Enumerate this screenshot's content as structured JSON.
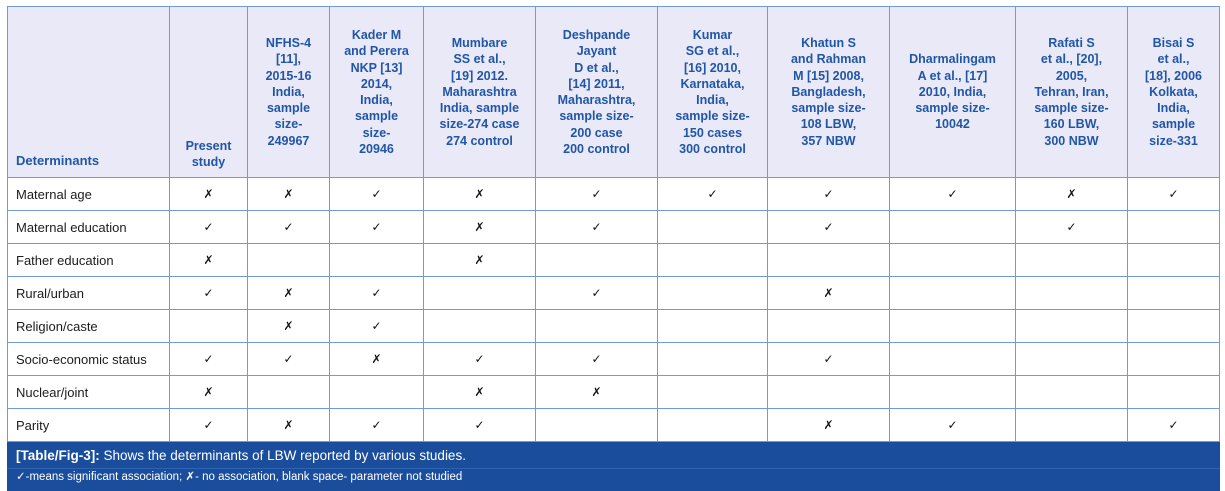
{
  "table": {
    "determinants_header": "Determinants",
    "columns": [
      "Present\nstudy",
      "NFHS-4\n[11],\n2015-16\nIndia,\nsample\nsize-\n249967",
      "Kader M\nand Perera\nNKP [13]\n2014,\nIndia,\nsample\nsize-\n20946",
      "Mumbare\nSS et al.,\n[19] 2012.\nMaharashtra\nIndia, sample\nsize-274 case\n274 control",
      "Deshpande\nJayant\nD et al.,\n[14] 2011,\nMaharashtra,\nsample size-\n200 case\n200 control",
      "Kumar\nSG et al.,\n[16] 2010,\nKarnataka,\nIndia,\nsample size-\n150 cases\n300 control",
      "Khatun S\nand Rahman\nM [15] 2008,\nBangladesh,\nsample size-\n108 LBW,\n357 NBW",
      "Dharmalingam\nA et al., [17]\n2010, India,\nsample size-\n10042",
      "Rafati S\net al., [20],\n2005,\nTehran, Iran,\nsample size-\n160 LBW,\n300 NBW",
      "Bisai S\net al.,\n[18], 2006\nKolkata,\nIndia,\nsample\nsize-331"
    ],
    "rows": [
      {
        "label": "Maternal age",
        "values": [
          "✗",
          "✗",
          "✓",
          "✗",
          "✓",
          "✓",
          "✓",
          "✓",
          "✗",
          "✓"
        ]
      },
      {
        "label": "Maternal education",
        "values": [
          "✓",
          "✓",
          "✓",
          "✗",
          "✓",
          "",
          "✓",
          "",
          "✓",
          ""
        ]
      },
      {
        "label": "Father education",
        "values": [
          "✗",
          "",
          "",
          "✗",
          "",
          "",
          "",
          "",
          "",
          ""
        ]
      },
      {
        "label": "Rural/urban",
        "values": [
          "✓",
          "✗",
          "✓",
          "",
          "✓",
          "",
          "✗",
          "",
          "",
          ""
        ]
      },
      {
        "label": "Religion/caste",
        "values": [
          "",
          "✗",
          "✓",
          "",
          "",
          "",
          "",
          "",
          "",
          ""
        ]
      },
      {
        "label": "Socio-economic status",
        "values": [
          "✓",
          "✓",
          "✗",
          "✓",
          "✓",
          "",
          "✓",
          "",
          "",
          ""
        ]
      },
      {
        "label": "Nuclear/joint",
        "values": [
          "✗",
          "",
          "",
          "✗",
          "✗",
          "",
          "",
          "",
          "",
          ""
        ]
      },
      {
        "label": "Parity",
        "values": [
          "✓",
          "✗",
          "✓",
          "✓",
          "",
          "",
          "✗",
          "✓",
          "",
          "✓"
        ]
      }
    ]
  },
  "footer": {
    "tag": "[Table/Fig-3]:",
    "caption": "Shows the determinants of LBW reported by various studies.",
    "legend": "✓-means significant association; ✗- no association, blank space- parameter not studied"
  },
  "legend_symbols": {
    "check": "✓",
    "cross": "✗"
  },
  "colors": {
    "header_bg": "#e9e9f8",
    "header_text": "#2156a6",
    "border": "#6f9bd6",
    "footer_bg": "#1b4d9d",
    "footer_text": "#ffffff"
  }
}
